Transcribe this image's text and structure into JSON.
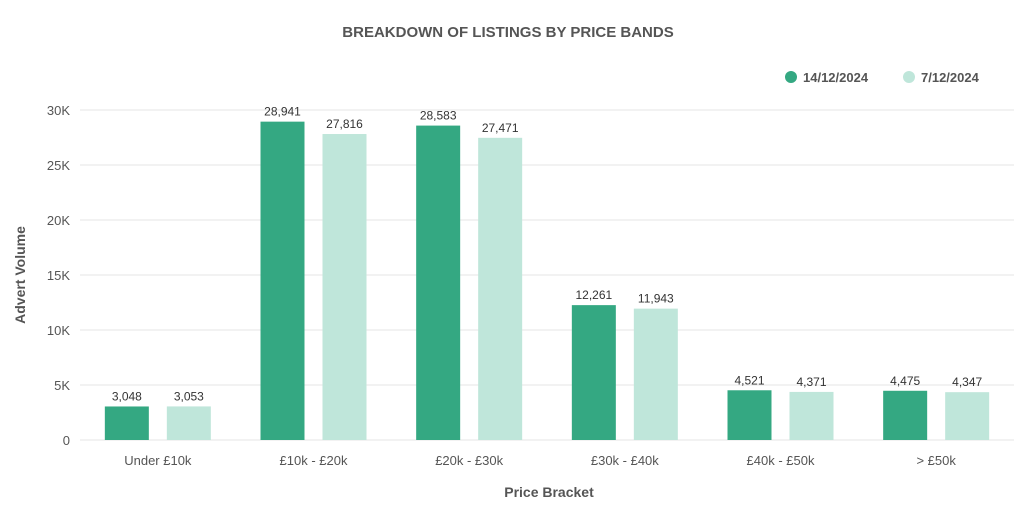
{
  "chart_data": {
    "type": "bar",
    "title": "BREAKDOWN OF LISTINGS BY PRICE BANDS",
    "xlabel": "Price Bracket",
    "ylabel": "Advert Volume",
    "categories": [
      "Under £10k",
      "£10k - £20k",
      "£20k - £30k",
      "£30k - £40k",
      "£40k - £50k",
      "> £50k"
    ],
    "series": [
      {
        "name": "14/12/2024",
        "color": "#34a882",
        "values": [
          3048,
          28941,
          28583,
          12261,
          4521,
          4475
        ],
        "labels": [
          "3,048",
          "28,941",
          "28,583",
          "12,261",
          "4,521",
          "4,475"
        ]
      },
      {
        "name": "7/12/2024",
        "color": "#bfe6da",
        "values": [
          3053,
          27816,
          27471,
          11943,
          4371,
          4347
        ],
        "labels": [
          "3,053",
          "27,816",
          "27,471",
          "11,943",
          "4,371",
          "4,347"
        ]
      }
    ],
    "ylim": [
      0,
      30000
    ],
    "yticks": [
      0,
      5000,
      10000,
      15000,
      20000,
      25000,
      30000
    ],
    "ytick_labels": [
      "0",
      "5K",
      "10K",
      "15K",
      "20K",
      "25K",
      "30K"
    ],
    "grid": true,
    "legend_position": "top-right"
  }
}
